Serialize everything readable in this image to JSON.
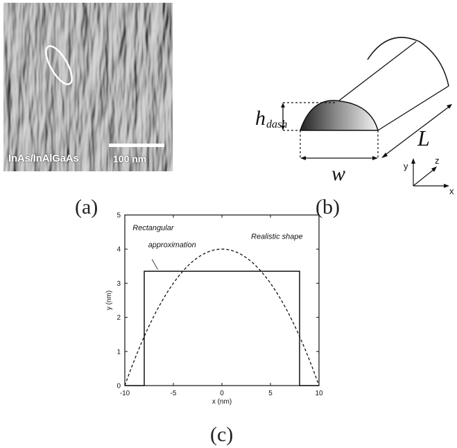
{
  "panel_a": {
    "caption": "(a)",
    "material_label": "InAs/InAlGaAs",
    "scale_bar_label": "100 nm"
  },
  "panel_b": {
    "caption": "(b)",
    "height_label_main": "h",
    "height_label_sub": "dash",
    "length_label": "L",
    "width_label": "w",
    "axis_y": "y",
    "axis_z": "z",
    "axis_x": "x"
  },
  "panel_c": {
    "caption": "(c)",
    "chart_data": {
      "type": "line",
      "xlabel": "x (nm)",
      "ylabel": "y (nm)",
      "xlim": [
        -10,
        10
      ],
      "ylim": [
        0,
        5
      ],
      "xticks": [
        -10,
        -5,
        0,
        5,
        10
      ],
      "yticks": [
        0,
        1,
        2,
        3,
        4,
        5
      ],
      "grid": false,
      "annotations": [
        "Rectangular approximation",
        "Realistic shape"
      ],
      "annotation_lines": [
        "Rectangular",
        "approximation",
        "Realistic shape"
      ],
      "series": [
        {
          "label": "Rectangular approximation",
          "style": "solid",
          "x": [
            -10,
            -8,
            -8,
            8,
            8,
            10
          ],
          "y": [
            0,
            0,
            3.35,
            3.35,
            0,
            0
          ]
        },
        {
          "label": "Realistic shape",
          "style": "dashed",
          "x": [
            -10,
            -8,
            -6,
            -4,
            -2,
            0,
            2,
            4,
            6,
            8,
            10
          ],
          "y": [
            0,
            1.44,
            2.56,
            3.36,
            3.84,
            4.0,
            3.84,
            3.36,
            2.56,
            1.44,
            0
          ]
        }
      ]
    }
  }
}
